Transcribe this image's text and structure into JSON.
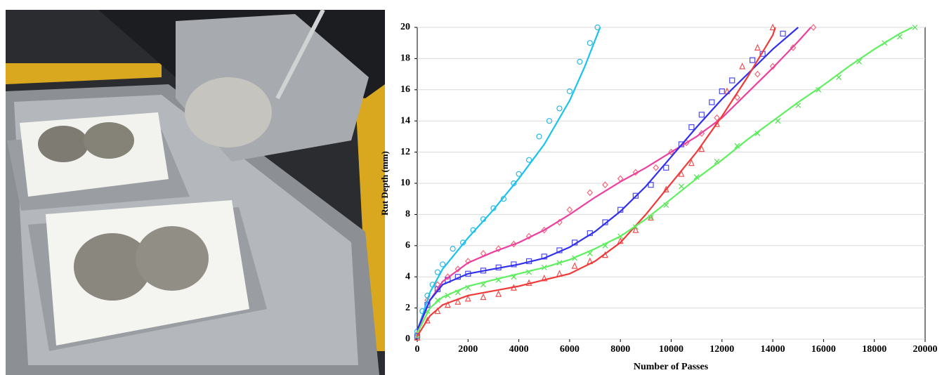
{
  "chart_data": {
    "type": "scatter",
    "xlabel": "Number of Passes",
    "ylabel": "Rut Depth (mm)",
    "xlim": [
      0,
      20000
    ],
    "ylim": [
      0,
      20
    ],
    "xticks": [
      0,
      2000,
      4000,
      6000,
      8000,
      10000,
      12000,
      14000,
      16000,
      18000,
      20000
    ],
    "yticks": [
      0,
      2,
      4,
      6,
      8,
      10,
      12,
      14,
      16,
      18,
      20
    ],
    "grid": true,
    "series": [
      {
        "color": "#2ab9e6",
        "marker": "circle",
        "x": [
          0,
          200,
          400,
          600,
          800,
          1000,
          1400,
          1800,
          2200,
          2600,
          3000,
          3400,
          3800,
          4000,
          4400,
          4800,
          5200,
          5600,
          6000,
          6400,
          6800,
          7100
        ],
        "values": [
          0.5,
          1.8,
          2.8,
          3.5,
          4.3,
          4.8,
          5.8,
          6.2,
          7.0,
          7.7,
          8.4,
          9.0,
          10.0,
          10.6,
          11.5,
          13.0,
          14.0,
          14.8,
          15.9,
          17.8,
          19.0,
          20.0
        ],
        "fit": {
          "color": "#19c3ea",
          "x": [
            0,
            500,
            1000,
            2000,
            3000,
            4000,
            5000,
            6000,
            6600,
            7200
          ],
          "values": [
            0.5,
            3.0,
            4.5,
            6.5,
            8.3,
            10.3,
            12.5,
            15.3,
            17.5,
            20.0
          ]
        }
      },
      {
        "color": "#f06a7a",
        "marker": "diamond",
        "x": [
          0,
          400,
          800,
          1200,
          1600,
          2000,
          2600,
          3200,
          3800,
          4400,
          5000,
          5600,
          6000,
          6800,
          7400,
          8000,
          8600,
          9400,
          10000,
          10600,
          11200,
          11800,
          12600,
          13400,
          14000,
          14800,
          15600
        ],
        "values": [
          0.3,
          2.5,
          3.5,
          4.0,
          4.5,
          5.0,
          5.5,
          5.8,
          6.1,
          6.6,
          7.0,
          7.5,
          8.3,
          9.4,
          9.9,
          10.3,
          10.7,
          11.0,
          12.0,
          12.6,
          13.2,
          14.2,
          15.5,
          17.0,
          17.5,
          18.7,
          20.0
        ],
        "fit": {
          "color": "#ec3fa0",
          "x": [
            0,
            500,
            1000,
            2000,
            3000,
            4000,
            5000,
            6000,
            7000,
            8000,
            9000,
            10000,
            11000,
            12000,
            13000,
            14000,
            15000,
            15500
          ],
          "values": [
            0.5,
            2.5,
            3.7,
            4.9,
            5.6,
            6.2,
            7.0,
            8.0,
            9.1,
            10.1,
            11.0,
            12.0,
            13.0,
            14.2,
            15.8,
            17.4,
            19.1,
            20.0
          ]
        }
      },
      {
        "color": "#4a4af0",
        "marker": "square",
        "x": [
          0,
          400,
          800,
          1200,
          1600,
          2000,
          2600,
          3200,
          3800,
          4400,
          5000,
          5600,
          6200,
          6800,
          7400,
          8000,
          8600,
          9200,
          9800,
          10400,
          10800,
          11200,
          11600,
          12000,
          12400,
          13200,
          13600,
          14400
        ],
        "values": [
          0.2,
          2.2,
          3.2,
          3.8,
          4.0,
          4.2,
          4.4,
          4.6,
          4.8,
          5.0,
          5.3,
          5.7,
          6.2,
          6.8,
          7.5,
          8.3,
          9.2,
          9.9,
          11.0,
          12.5,
          13.6,
          14.4,
          15.2,
          15.9,
          16.6,
          17.9,
          18.3,
          19.6
        ],
        "fit": {
          "color": "#3030ee",
          "x": [
            0,
            500,
            1000,
            2000,
            3000,
            4000,
            5000,
            6000,
            7000,
            8000,
            9000,
            10000,
            11000,
            12000,
            13000,
            14000,
            15000
          ],
          "values": [
            0.6,
            2.5,
            3.5,
            4.2,
            4.5,
            4.8,
            5.2,
            5.9,
            6.9,
            8.2,
            9.8,
            11.7,
            13.6,
            15.4,
            17.0,
            18.6,
            20.0
          ]
        }
      },
      {
        "color": "#f05050",
        "marker": "triangle",
        "x": [
          0,
          400,
          800,
          1200,
          1600,
          2000,
          2600,
          3200,
          3800,
          4400,
          5000,
          5600,
          6200,
          6800,
          7400,
          8000,
          8600,
          9200,
          9800,
          10400,
          10800,
          11200,
          11800,
          12200,
          12800,
          13400,
          14000
        ],
        "values": [
          0.1,
          1.2,
          1.8,
          2.2,
          2.4,
          2.6,
          2.7,
          2.9,
          3.3,
          3.6,
          3.9,
          4.2,
          4.7,
          5.0,
          5.4,
          6.3,
          7.0,
          7.8,
          9.6,
          10.6,
          11.3,
          12.2,
          13.8,
          15.9,
          17.5,
          18.7,
          20.0
        ],
        "fit": {
          "color": "#f03a3a",
          "x": [
            0,
            500,
            1000,
            2000,
            3000,
            4000,
            5000,
            6000,
            7000,
            8000,
            9000,
            10000,
            11000,
            12000,
            13000,
            14000,
            14100
          ],
          "values": [
            0.2,
            1.5,
            2.2,
            2.8,
            3.1,
            3.4,
            3.8,
            4.2,
            5.0,
            6.2,
            8.0,
            10.0,
            12.0,
            14.3,
            16.8,
            19.5,
            20.0
          ]
        }
      },
      {
        "color": "#50e050",
        "marker": "cross",
        "x": [
          0,
          400,
          800,
          1200,
          1600,
          2000,
          2600,
          3200,
          3800,
          4400,
          5000,
          5600,
          6200,
          6800,
          7400,
          8000,
          8600,
          9200,
          9800,
          10400,
          11000,
          11800,
          12600,
          13400,
          14200,
          15000,
          15800,
          16600,
          17400,
          18400,
          19000,
          19600
        ],
        "values": [
          0.2,
          1.8,
          2.5,
          2.8,
          3.0,
          3.3,
          3.5,
          3.8,
          4.0,
          4.3,
          4.6,
          4.9,
          5.2,
          5.5,
          6.0,
          6.6,
          7.2,
          7.8,
          8.6,
          9.8,
          10.4,
          11.4,
          12.4,
          13.2,
          14.0,
          15.0,
          16.0,
          16.8,
          17.8,
          19.0,
          19.4,
          20.0
        ],
        "fit": {
          "color": "#5ef05e",
          "x": [
            0,
            500,
            1000,
            2000,
            3000,
            4000,
            5000,
            6000,
            7000,
            8000,
            9000,
            10000,
            11000,
            12000,
            13000,
            14000,
            15000,
            16000,
            17000,
            18000,
            19000,
            19500
          ],
          "values": [
            0.4,
            2.0,
            2.7,
            3.4,
            3.8,
            4.2,
            4.6,
            5.1,
            5.8,
            6.6,
            7.7,
            9.0,
            10.3,
            11.5,
            12.8,
            14.0,
            15.2,
            16.3,
            17.5,
            18.6,
            19.6,
            20.0
          ]
        }
      }
    ]
  }
}
